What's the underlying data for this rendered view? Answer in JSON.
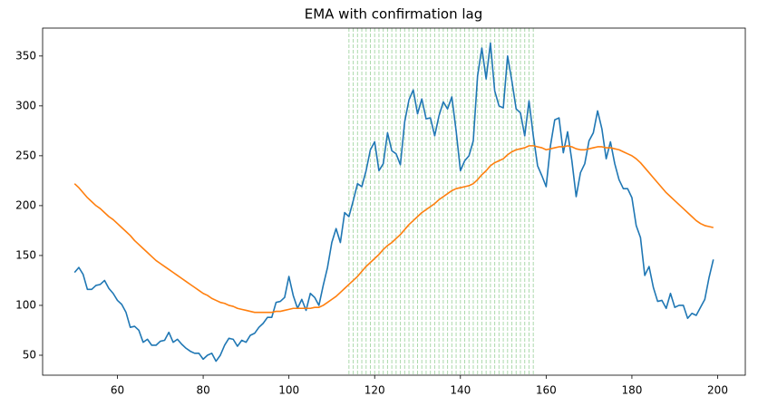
{
  "chart_data": {
    "type": "line",
    "title": "EMA with confirmation lag",
    "x": [
      50,
      51,
      52,
      53,
      54,
      55,
      56,
      57,
      58,
      59,
      60,
      61,
      62,
      63,
      64,
      65,
      66,
      67,
      68,
      69,
      70,
      71,
      72,
      73,
      74,
      75,
      76,
      77,
      78,
      79,
      80,
      81,
      82,
      83,
      84,
      85,
      86,
      87,
      88,
      89,
      90,
      91,
      92,
      93,
      94,
      95,
      96,
      97,
      98,
      99,
      100,
      101,
      102,
      103,
      104,
      105,
      106,
      107,
      108,
      109,
      110,
      111,
      112,
      113,
      114,
      115,
      116,
      117,
      118,
      119,
      120,
      121,
      122,
      123,
      124,
      125,
      126,
      127,
      128,
      129,
      130,
      131,
      132,
      133,
      134,
      135,
      136,
      137,
      138,
      139,
      140,
      141,
      142,
      143,
      144,
      145,
      146,
      147,
      148,
      149,
      150,
      151,
      152,
      153,
      154,
      155,
      156,
      157,
      158,
      159,
      160,
      161,
      162,
      163,
      164,
      165,
      166,
      167,
      168,
      169,
      170,
      171,
      172,
      173,
      174,
      175,
      176,
      177,
      178,
      179,
      180,
      181,
      182,
      183,
      184,
      185,
      186,
      187,
      188,
      189,
      190,
      191,
      192,
      193,
      194,
      195,
      196,
      197,
      198,
      199
    ],
    "series": [
      {
        "color": "#1f77b4",
        "values": [
          133,
          138,
          131,
          116,
          116,
          120,
          121,
          125,
          117,
          112,
          105,
          101,
          93,
          78,
          79,
          75,
          63,
          66,
          60,
          60,
          64,
          65,
          73,
          63,
          66,
          61,
          57,
          54,
          52,
          52,
          46,
          50,
          52,
          44,
          50,
          60,
          67,
          66,
          59,
          65,
          63,
          70,
          72,
          78,
          82,
          88,
          88,
          103,
          104,
          108,
          129,
          110,
          97,
          106,
          95,
          112,
          108,
          100,
          120,
          138,
          163,
          177,
          163,
          193,
          189,
          205,
          222,
          219,
          235,
          256,
          264,
          235,
          242,
          273,
          255,
          252,
          241,
          284,
          306,
          316,
          292,
          307,
          287,
          288,
          270,
          290,
          304,
          297,
          309,
          275,
          235,
          245,
          250,
          265,
          330,
          358,
          327,
          363,
          315,
          300,
          298,
          350,
          325,
          297,
          293,
          270,
          305,
          270,
          240,
          230,
          219,
          260,
          286,
          288,
          253,
          274,
          245,
          209,
          233,
          242,
          265,
          273,
          295,
          277,
          247,
          264,
          242,
          226,
          217,
          217,
          208,
          180,
          168,
          130,
          139,
          118,
          104,
          105,
          97,
          112,
          98,
          100,
          100,
          87,
          92,
          90,
          98,
          106,
          128,
          146
        ]
      },
      {
        "color": "#ff7f0e",
        "values": [
          222,
          218,
          213,
          208,
          204,
          200,
          197,
          193,
          189,
          186,
          182,
          178,
          174,
          170,
          165,
          161,
          157,
          153,
          149,
          145,
          142,
          139,
          136,
          133,
          130,
          127,
          124,
          121,
          118,
          115,
          112,
          110,
          107,
          105,
          103,
          102,
          100,
          99,
          97,
          96,
          95,
          94,
          93,
          93,
          93,
          93,
          93,
          94,
          94,
          95,
          96,
          97,
          97,
          97,
          97,
          97,
          98,
          98,
          100,
          103,
          106,
          109,
          113,
          117,
          121,
          125,
          129,
          134,
          139,
          143,
          147,
          151,
          156,
          160,
          163,
          167,
          171,
          176,
          181,
          185,
          189,
          193,
          196,
          199,
          202,
          206,
          209,
          212,
          215,
          217,
          218,
          219,
          220,
          222,
          226,
          231,
          235,
          240,
          243,
          245,
          247,
          251,
          254,
          256,
          257,
          258,
          260,
          260,
          259,
          258,
          256,
          257,
          258,
          259,
          259,
          260,
          259,
          257,
          256,
          256,
          257,
          258,
          259,
          259,
          258,
          258,
          257,
          256,
          254,
          252,
          250,
          247,
          243,
          238,
          233,
          228,
          223,
          218,
          213,
          209,
          205,
          201,
          197,
          193,
          189,
          185,
          182,
          180,
          179,
          178
        ]
      }
    ],
    "vlines": [
      114,
      115,
      116,
      117,
      118,
      119,
      120,
      121,
      122,
      123,
      124,
      125,
      126,
      127,
      128,
      129,
      130,
      131,
      132,
      133,
      134,
      135,
      136,
      137,
      138,
      139,
      140,
      141,
      142,
      143,
      144,
      145,
      146,
      147,
      148,
      149,
      150,
      151,
      152,
      153,
      154,
      155,
      156,
      157
    ],
    "vline_color": "#2ca02c",
    "xlim": [
      42.55,
      206.45
    ],
    "xticks": [
      60,
      80,
      100,
      120,
      140,
      160,
      180,
      200
    ],
    "ylim": [
      30,
      378
    ],
    "yticks": [
      50,
      100,
      150,
      200,
      250,
      300,
      350
    ]
  }
}
